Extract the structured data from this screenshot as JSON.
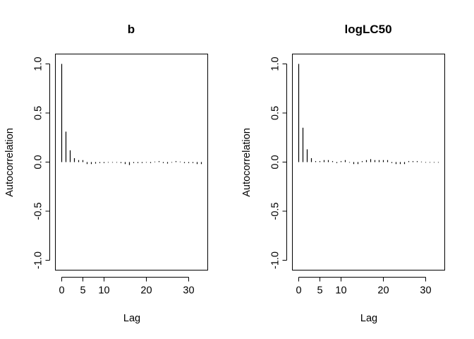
{
  "chart_data": [
    {
      "type": "bar",
      "title": "b",
      "xlabel": "Lag",
      "ylabel": "Autocorrelation",
      "xlim": [
        -1.5,
        34.5
      ],
      "ylim": [
        -1.0,
        1.0
      ],
      "xticks": [
        0,
        5,
        10,
        20,
        30
      ],
      "yticks": [
        -1.0,
        -0.5,
        0.0,
        0.5,
        1.0
      ],
      "xtick_labels": [
        "0",
        "5",
        "10",
        "20",
        "30"
      ],
      "ytick_labels": [
        "-1.0",
        "-0.5",
        "0.0",
        "0.5",
        "1.0"
      ],
      "grid": false,
      "x": [
        0,
        1,
        2,
        3,
        4,
        5,
        6,
        7,
        8,
        9,
        10,
        11,
        12,
        13,
        14,
        15,
        16,
        17,
        18,
        19,
        20,
        21,
        22,
        23,
        24,
        25,
        26,
        27,
        28,
        29,
        30,
        31,
        32,
        33
      ],
      "values": [
        1.0,
        0.31,
        0.12,
        0.04,
        0.02,
        0.02,
        -0.02,
        -0.02,
        -0.015,
        -0.01,
        -0.01,
        -0.005,
        -0.005,
        0.0,
        -0.01,
        -0.02,
        -0.03,
        -0.01,
        -0.01,
        -0.01,
        -0.005,
        -0.01,
        0.005,
        0.01,
        -0.01,
        -0.015,
        0.0,
        0.01,
        0.005,
        -0.01,
        -0.01,
        -0.01,
        -0.02,
        -0.02
      ]
    },
    {
      "type": "bar",
      "title": "logLC50",
      "xlabel": "Lag",
      "ylabel": "Autocorrelation",
      "xlim": [
        -1.5,
        34.5
      ],
      "ylim": [
        -1.0,
        1.0
      ],
      "xticks": [
        0,
        5,
        10,
        20,
        30
      ],
      "yticks": [
        -1.0,
        -0.5,
        0.0,
        0.5,
        1.0
      ],
      "xtick_labels": [
        "0",
        "5",
        "10",
        "20",
        "30"
      ],
      "ytick_labels": [
        "-1.0",
        "-0.5",
        "0.0",
        "0.5",
        "1.0"
      ],
      "grid": false,
      "x": [
        0,
        1,
        2,
        3,
        4,
        5,
        6,
        7,
        8,
        9,
        10,
        11,
        12,
        13,
        14,
        15,
        16,
        17,
        18,
        19,
        20,
        21,
        22,
        23,
        24,
        25,
        26,
        27,
        28,
        29,
        30,
        31,
        32,
        33
      ],
      "values": [
        1.0,
        0.35,
        0.13,
        0.04,
        0.01,
        0.01,
        0.02,
        0.02,
        0.01,
        -0.01,
        0.01,
        0.02,
        0.0,
        -0.02,
        -0.02,
        0.01,
        0.02,
        0.03,
        0.02,
        0.02,
        0.02,
        0.02,
        -0.01,
        -0.02,
        -0.02,
        -0.02,
        0.01,
        0.01,
        0.01,
        0.005,
        0.0,
        0.0,
        0.0,
        0.0
      ]
    }
  ]
}
